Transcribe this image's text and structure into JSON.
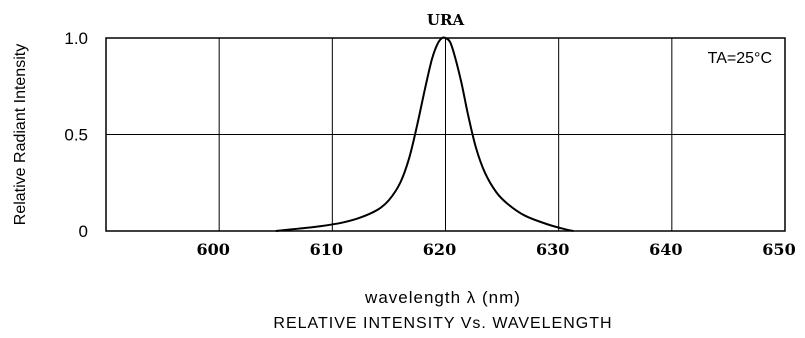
{
  "chart_data": {
    "type": "line",
    "xlabel": "wavelength λ  (nm)",
    "subtitle": "RELATIVE  INTENSITY  Vs.  WAVELENGTH",
    "ylabel": "Relative Radiant Intensity",
    "annotation": "TA=25°C",
    "series_label": "URA",
    "xlim": [
      590,
      650
    ],
    "ylim": [
      0,
      1.0
    ],
    "x_ticks": [
      600,
      610,
      620,
      630,
      640,
      650
    ],
    "x_tick_labels": [
      "600",
      "610",
      "620",
      "630",
      "640",
      "650"
    ],
    "y_ticks": [
      0,
      0.5,
      1.0
    ],
    "y_tick_labels": [
      "0",
      "0.5",
      "1.0"
    ],
    "grid": true,
    "series": [
      {
        "name": "URA",
        "x": [
          605,
          607,
          609,
          611,
          612.5,
          614,
          615,
          616,
          616.8,
          617.5,
          618.2,
          618.8,
          619.3,
          619.7,
          620,
          620.4,
          620.8,
          621.4,
          622,
          622.7,
          623.5,
          624.5,
          625.5,
          627,
          629,
          630.5,
          631.3
        ],
        "y": [
          0,
          0.012,
          0.025,
          0.045,
          0.07,
          0.11,
          0.16,
          0.25,
          0.38,
          0.55,
          0.74,
          0.89,
          0.97,
          1.0,
          1.0,
          0.98,
          0.91,
          0.77,
          0.6,
          0.43,
          0.3,
          0.2,
          0.14,
          0.08,
          0.035,
          0.01,
          0
        ]
      }
    ]
  }
}
